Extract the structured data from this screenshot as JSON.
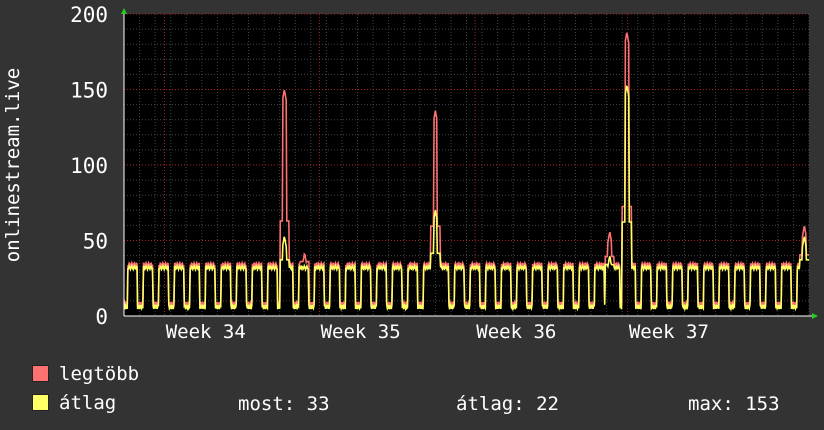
{
  "chart_data": {
    "type": "line",
    "title": "",
    "xlabel": "",
    "ylabel": "onlinestream.live",
    "ylim": [
      0,
      200
    ],
    "yticks": [
      0,
      50,
      100,
      150,
      200
    ],
    "xlim_days": [
      0,
      35
    ],
    "x_categories": [
      "Week 34",
      "Week 35",
      "Week 36",
      "Week 37"
    ],
    "grid": true,
    "legend_position": "bottom-left",
    "series": [
      {
        "name": "legtöbb",
        "color": "#ff7070",
        "pattern": "daily cycle, high ≈ 34, low ≈ 8",
        "baseline_high": 34,
        "baseline_low": 8,
        "spikes": [
          {
            "day": 10.3,
            "value": 150
          },
          {
            "day": 11.6,
            "value": 42
          },
          {
            "day": 20.0,
            "value": 136
          },
          {
            "day": 31.2,
            "value": 56
          },
          {
            "day": 32.3,
            "value": 188
          },
          {
            "day": 43.7,
            "value": 60
          }
        ]
      },
      {
        "name": "átlag",
        "color": "#ffff66",
        "pattern": "daily cycle, high ≈ 32, low ≈ 6",
        "baseline_high": 32,
        "baseline_low": 6,
        "spikes": [
          {
            "day": 10.3,
            "value": 53
          },
          {
            "day": 20.0,
            "value": 70
          },
          {
            "day": 31.2,
            "value": 40
          },
          {
            "day": 32.3,
            "value": 153
          },
          {
            "day": 43.7,
            "value": 53
          }
        ]
      }
    ]
  },
  "legend": {
    "max_label": "legtöbb",
    "avg_label": "átlag",
    "max_color": "#ff7070",
    "avg_color": "#ffff66"
  },
  "stats": {
    "now": "most: 33",
    "avg": "átlag: 22",
    "max": "max: 153"
  }
}
